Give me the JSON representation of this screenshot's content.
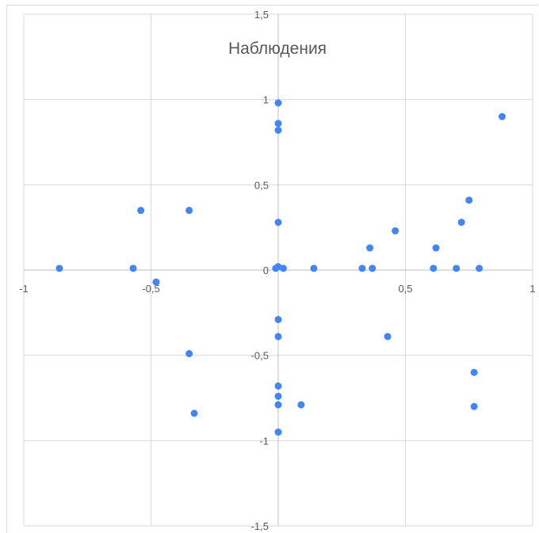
{
  "chart_data": {
    "type": "scatter",
    "title": "Наблюдения",
    "xlim": [
      -1,
      1
    ],
    "ylim": [
      -1.5,
      1.5
    ],
    "grid": true,
    "x_ticks": [
      {
        "value": -1,
        "label": "-1"
      },
      {
        "value": -0.5,
        "label": "-0,5"
      },
      {
        "value": 0.5,
        "label": "0,5"
      },
      {
        "value": 1,
        "label": "1"
      }
    ],
    "y_ticks": [
      {
        "value": 1.5,
        "label": "1,5"
      },
      {
        "value": 1,
        "label": "1"
      },
      {
        "value": 0.5,
        "label": "0,5"
      },
      {
        "value": 0,
        "label": "0"
      },
      {
        "value": -0.5,
        "label": "-0,5"
      },
      {
        "value": -1,
        "label": "-1"
      },
      {
        "value": -1.5,
        "label": "-1,5"
      }
    ],
    "marker_color": "#4285f4",
    "points": [
      {
        "x": 0.0,
        "y": 0.98
      },
      {
        "x": 0.0,
        "y": 0.86
      },
      {
        "x": 0.0,
        "y": 0.82
      },
      {
        "x": 0.88,
        "y": 0.9
      },
      {
        "x": -0.54,
        "y": 0.35
      },
      {
        "x": -0.35,
        "y": 0.35
      },
      {
        "x": 0.0,
        "y": 0.28
      },
      {
        "x": 0.75,
        "y": 0.41
      },
      {
        "x": 0.72,
        "y": 0.28
      },
      {
        "x": 0.46,
        "y": 0.23
      },
      {
        "x": 0.36,
        "y": 0.13
      },
      {
        "x": 0.62,
        "y": 0.13
      },
      {
        "x": -0.86,
        "y": 0.01
      },
      {
        "x": -0.57,
        "y": 0.01
      },
      {
        "x": -0.01,
        "y": 0.01
      },
      {
        "x": 0.0,
        "y": 0.02
      },
      {
        "x": 0.02,
        "y": 0.01
      },
      {
        "x": 0.14,
        "y": 0.01
      },
      {
        "x": 0.33,
        "y": 0.01
      },
      {
        "x": 0.37,
        "y": 0.01
      },
      {
        "x": 0.61,
        "y": 0.01
      },
      {
        "x": 0.7,
        "y": 0.01
      },
      {
        "x": 0.79,
        "y": 0.01
      },
      {
        "x": -0.48,
        "y": -0.07
      },
      {
        "x": 0.0,
        "y": -0.29
      },
      {
        "x": 0.0,
        "y": -0.39
      },
      {
        "x": 0.43,
        "y": -0.39
      },
      {
        "x": -0.35,
        "y": -0.49
      },
      {
        "x": 0.77,
        "y": -0.6
      },
      {
        "x": 0.0,
        "y": -0.68
      },
      {
        "x": 0.0,
        "y": -0.74
      },
      {
        "x": 0.0,
        "y": -0.79
      },
      {
        "x": 0.09,
        "y": -0.79
      },
      {
        "x": 0.77,
        "y": -0.8
      },
      {
        "x": -0.33,
        "y": -0.84
      },
      {
        "x": 0.0,
        "y": -0.95
      }
    ]
  }
}
